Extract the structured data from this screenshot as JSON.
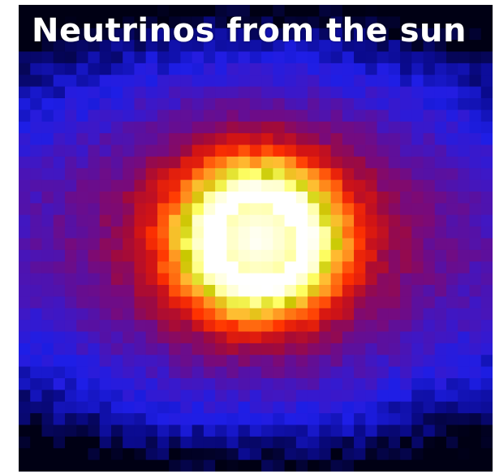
{
  "image": {
    "title": "Neutrinos from the sun",
    "subject": "pixelated neutrino image of the sun",
    "colormap": [
      "#000014",
      "#0a0a8c",
      "#1e1ee6",
      "#3c18c8",
      "#5a10a0",
      "#7a0a78",
      "#a00a3c",
      "#d21414",
      "#ff3200",
      "#ff7814",
      "#ffbe32",
      "#c8c800",
      "#ffff64",
      "#ffffc8",
      "#ffffff"
    ]
  }
}
